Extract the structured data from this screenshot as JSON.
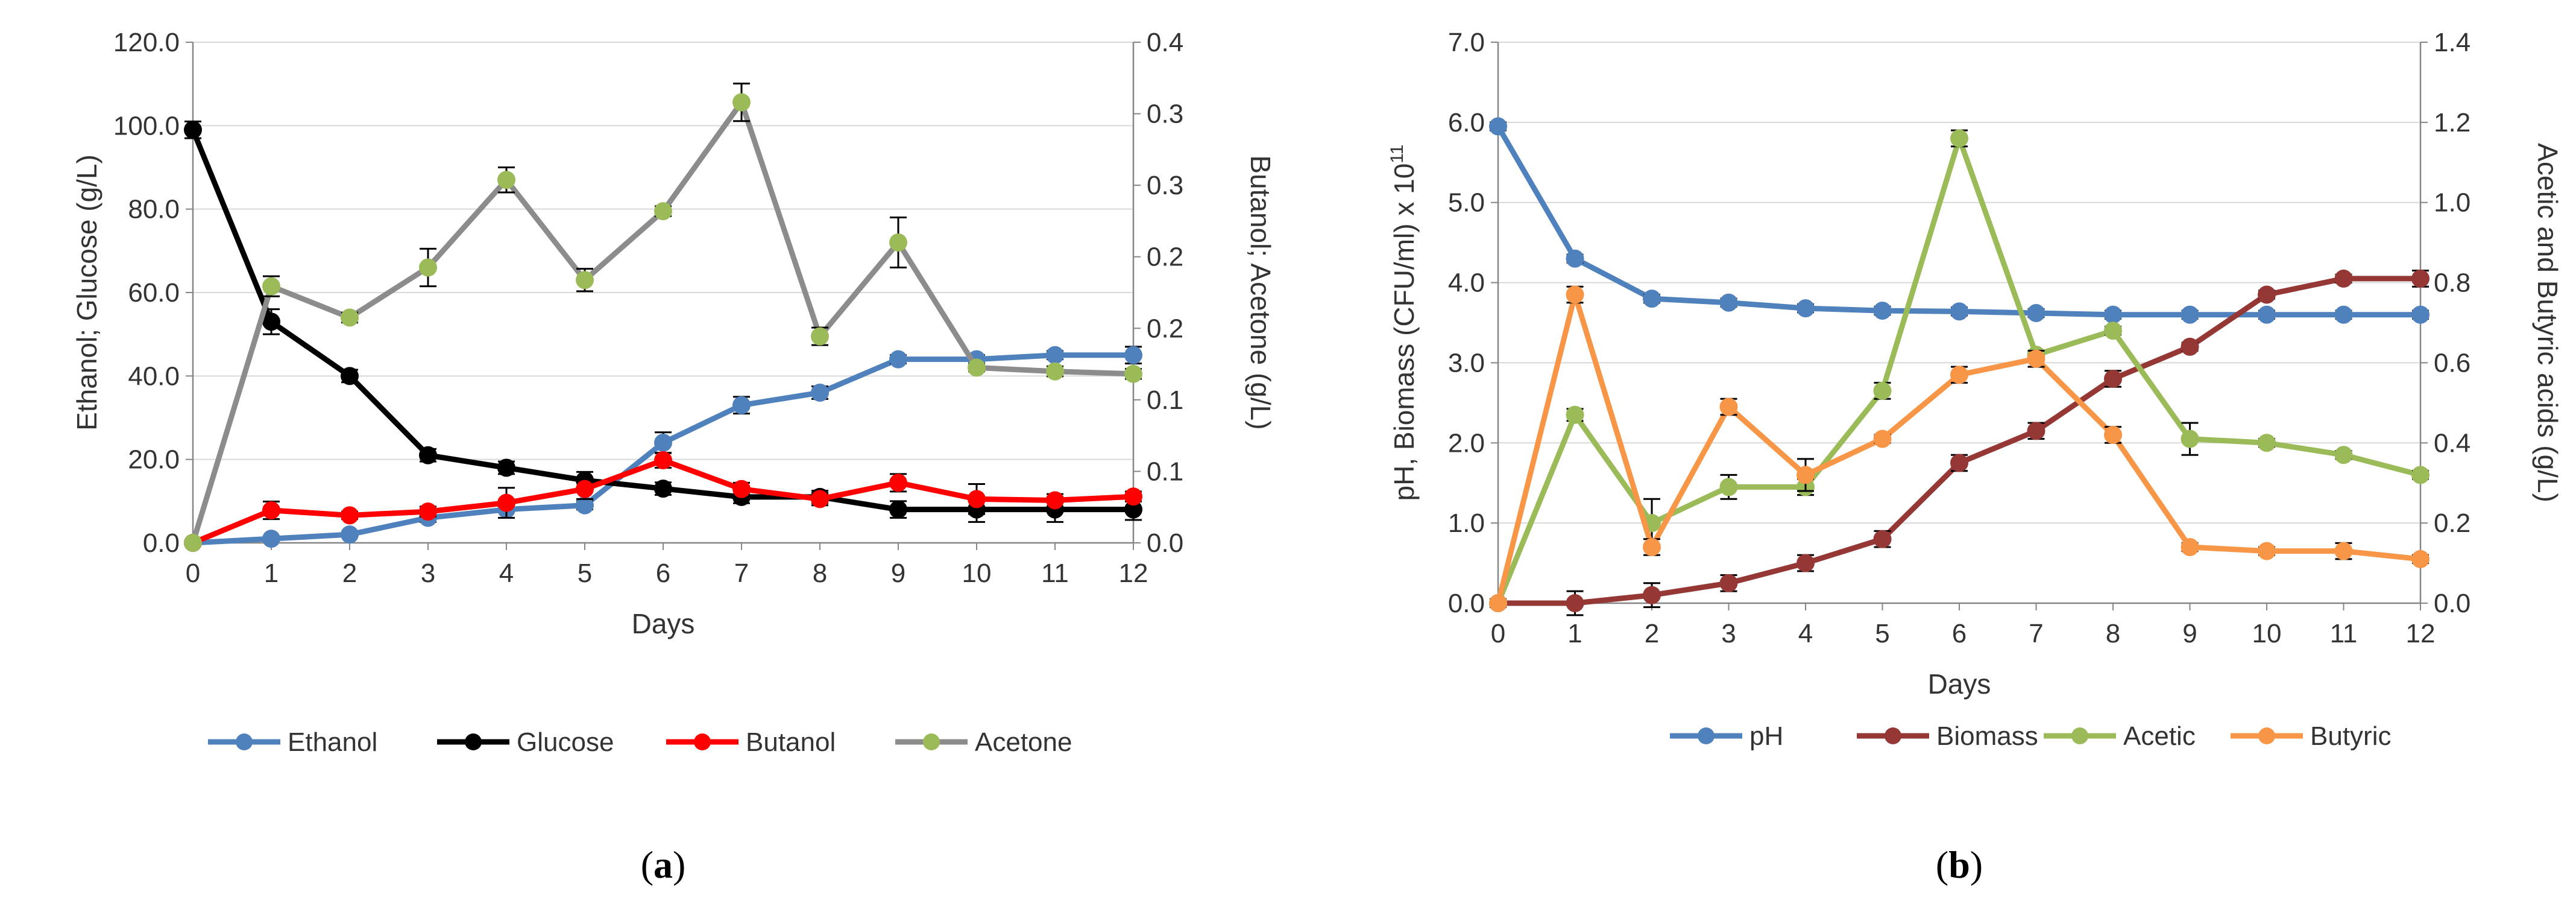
{
  "chart_data": [
    {
      "type": "line",
      "panel_label": "a",
      "caption_open": "(",
      "caption_close": ")",
      "xlabel": "Days",
      "ylabel_left": "Ethanol; Glucose  (g/L)",
      "ylabel_right": "Butanol; Acetone (g/L)",
      "x": [
        0,
        1,
        2,
        3,
        4,
        5,
        6,
        7,
        8,
        9,
        10,
        11,
        12
      ],
      "xtick_labels": [
        "0",
        "1",
        "2",
        "3",
        "4",
        "5",
        "6",
        "7",
        "8",
        "9",
        "10",
        "11",
        "12"
      ],
      "ylim_left": [
        0,
        120
      ],
      "ylim_right": [
        0,
        0.4
      ],
      "ytick_labels_left": [
        "0.0",
        "20.0",
        "40.0",
        "60.0",
        "80.0",
        "100.0",
        "120.0"
      ],
      "ytick_labels_right": [
        "0.0",
        "0.1",
        "0.1",
        "0.2",
        "0.2",
        "0.3",
        "0.3",
        "0.4"
      ],
      "grid": "horizontal",
      "legend_position": "bottom",
      "series": [
        {
          "name": "Ethanol",
          "axis": "left",
          "color": "#4f81bd",
          "values": [
            0,
            1,
            2,
            6,
            8,
            9,
            24,
            33,
            36,
            44,
            44,
            45,
            45
          ],
          "errors": [
            0,
            0.5,
            0.5,
            1,
            2,
            1,
            2.5,
            2,
            1.5,
            1,
            1,
            1,
            2
          ]
        },
        {
          "name": "Glucose",
          "axis": "left",
          "color": "#000000",
          "values": [
            99,
            53,
            40,
            21,
            18,
            15,
            13,
            11,
            11,
            8,
            8,
            8,
            8
          ],
          "errors": [
            2,
            3,
            1.5,
            1.5,
            1.5,
            2,
            1.5,
            1.5,
            1.5,
            2,
            3,
            3,
            2.5
          ]
        },
        {
          "name": "Butanol",
          "axis": "right",
          "color": "#ff0000",
          "values": [
            0,
            0.026,
            0.022,
            0.025,
            0.032,
            0.043,
            0.066,
            0.043,
            0.035,
            0.048,
            0.035,
            0.034,
            0.037
          ],
          "errors": [
            0,
            0.007,
            0.003,
            0.004,
            0.012,
            0.008,
            0.006,
            0.005,
            0.005,
            0.007,
            0.012,
            0.005,
            0.004
          ]
        },
        {
          "name": "Acetone",
          "axis": "right",
          "color": "#8c8c8c",
          "marker_color": "#9bbb59",
          "values": [
            0,
            0.205,
            0.18,
            0.22,
            0.29,
            0.21,
            0.265,
            0.352,
            0.165,
            0.24,
            0.14,
            0.137,
            0.135
          ],
          "errors": [
            0,
            0.008,
            0.004,
            0.015,
            0.01,
            0.009,
            0.004,
            0.015,
            0.007,
            0.02,
            0.003,
            0.004,
            0.004
          ]
        }
      ]
    },
    {
      "type": "line",
      "panel_label": "b",
      "caption_open": "(",
      "caption_close": ")",
      "xlabel": "Days",
      "ylabel_left": "pH, Biomass  (CFU/ml) x 10",
      "ylabel_left_sup": "11",
      "ylabel_right": "Acetic and Butyric acids  (g/L)",
      "x": [
        0,
        1,
        2,
        3,
        4,
        5,
        6,
        7,
        8,
        9,
        10,
        11,
        12
      ],
      "xtick_labels": [
        "0",
        "1",
        "2",
        "3",
        "4",
        "5",
        "6",
        "7",
        "8",
        "9",
        "10",
        "11",
        "12"
      ],
      "ylim_left": [
        0,
        7
      ],
      "ylim_right": [
        0,
        1.4
      ],
      "ytick_labels_left": [
        "0.0",
        "1.0",
        "2.0",
        "3.0",
        "4.0",
        "5.0",
        "6.0",
        "7.0"
      ],
      "ytick_labels_right": [
        "0.0",
        "0.2",
        "0.4",
        "0.6",
        "0.8",
        "1.0",
        "1.2",
        "1.4"
      ],
      "grid": "horizontal",
      "legend_position": "bottom",
      "series": [
        {
          "name": "pH",
          "axis": "left",
          "color": "#4f81bd",
          "values": [
            5.95,
            4.3,
            3.8,
            3.75,
            3.68,
            3.65,
            3.64,
            3.62,
            3.6,
            3.6,
            3.6,
            3.6,
            3.6
          ],
          "errors": [
            0.05,
            0.05,
            0.05,
            0.05,
            0.05,
            0.05,
            0.05,
            0.05,
            0.05,
            0.05,
            0.05,
            0.05,
            0.05
          ]
        },
        {
          "name": "Biomass",
          "axis": "left",
          "color": "#953735",
          "values": [
            0,
            0,
            0.1,
            0.25,
            0.5,
            0.8,
            1.75,
            2.15,
            2.8,
            3.2,
            3.85,
            4.05,
            4.05
          ],
          "errors": [
            0.05,
            0.15,
            0.15,
            0.1,
            0.1,
            0.1,
            0.1,
            0.1,
            0.1,
            0.05,
            0.05,
            0.05,
            0.1
          ]
        },
        {
          "name": "Acetic",
          "axis": "right",
          "color": "#9bbb59",
          "values": [
            0,
            0.47,
            0.2,
            0.29,
            0.29,
            0.53,
            1.16,
            0.62,
            0.68,
            0.41,
            0.4,
            0.37,
            0.32
          ],
          "errors": [
            0,
            0.015,
            0.06,
            0.03,
            0.02,
            0.02,
            0.02,
            0.01,
            0.01,
            0.04,
            0.01,
            0.01,
            0.01
          ]
        },
        {
          "name": "Butyric",
          "axis": "right",
          "color": "#f79646",
          "values": [
            0,
            0.77,
            0.14,
            0.49,
            0.32,
            0.41,
            0.57,
            0.61,
            0.42,
            0.14,
            0.13,
            0.13,
            0.11
          ],
          "errors": [
            0,
            0.02,
            0.02,
            0.02,
            0.04,
            0.01,
            0.02,
            0.02,
            0.02,
            0.01,
            0.01,
            0.02,
            0.01
          ]
        }
      ]
    }
  ]
}
